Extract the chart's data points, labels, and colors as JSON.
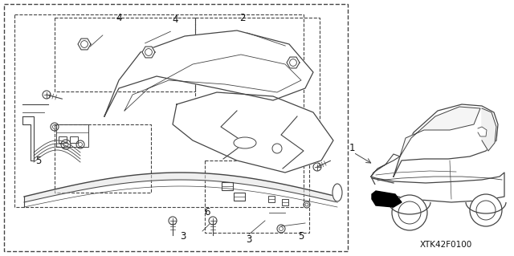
{
  "background_color": "#ffffff",
  "line_color": "#444444",
  "fig_w": 6.4,
  "fig_h": 3.19,
  "dpi": 100,
  "part_code": "XTK42F0100",
  "partcode_fontsize": 7.5,
  "label_fontsize": 8.5
}
